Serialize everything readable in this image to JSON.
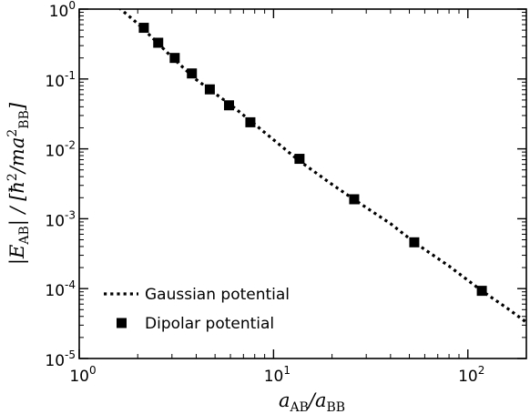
{
  "chart_data": {
    "type": "scatter",
    "x_scale": "log",
    "y_scale": "log",
    "xlim": [
      1,
      200
    ],
    "ylim": [
      1e-05,
      1
    ],
    "xlabel": "a_AB / a_BB",
    "ylabel": "|E_AB| / [ħ²/m a²_BB]",
    "x_ticks": [
      {
        "value": 1,
        "base": "10",
        "exp": "0"
      },
      {
        "value": 10,
        "base": "10",
        "exp": "1"
      },
      {
        "value": 100,
        "base": "10",
        "exp": "2"
      }
    ],
    "y_ticks": [
      {
        "value": 1,
        "base": "10",
        "exp": "0"
      },
      {
        "value": 0.1,
        "base": "10",
        "exp": "-1"
      },
      {
        "value": 0.01,
        "base": "10",
        "exp": "-2"
      },
      {
        "value": 0.001,
        "base": "10",
        "exp": "-3"
      },
      {
        "value": 0.0001,
        "base": "10",
        "exp": "-4"
      },
      {
        "value": 1e-05,
        "base": "10",
        "exp": "-5"
      }
    ],
    "series": [
      {
        "name": "Gaussian potential",
        "kind": "line",
        "style": "dotted",
        "color": "#000000",
        "x": [
          1.6,
          2.0,
          2.5,
          3.0,
          3.5,
          4.0,
          5.0,
          6.0,
          7.5,
          10,
          13.5,
          20,
          26,
          40,
          53,
          80,
          118,
          160,
          200
        ],
        "y": [
          1.05,
          0.62,
          0.34,
          0.205,
          0.138,
          0.098,
          0.062,
          0.043,
          0.026,
          0.0135,
          0.0068,
          0.0031,
          0.00188,
          0.00085,
          0.00046,
          0.00021,
          9.3e-05,
          5.2e-05,
          3.3e-05
        ]
      },
      {
        "name": "Dipolar potential",
        "kind": "scatter",
        "marker": "square",
        "color": "#000000",
        "x": [
          2.15,
          2.55,
          3.1,
          3.8,
          4.7,
          5.9,
          7.6,
          13.6,
          26,
          53,
          118
        ],
        "y": [
          0.54,
          0.33,
          0.2,
          0.12,
          0.071,
          0.042,
          0.024,
          0.0072,
          0.0019,
          0.00046,
          9.3e-05
        ]
      }
    ],
    "legend": {
      "placement": "lower-left"
    },
    "grid": false
  }
}
